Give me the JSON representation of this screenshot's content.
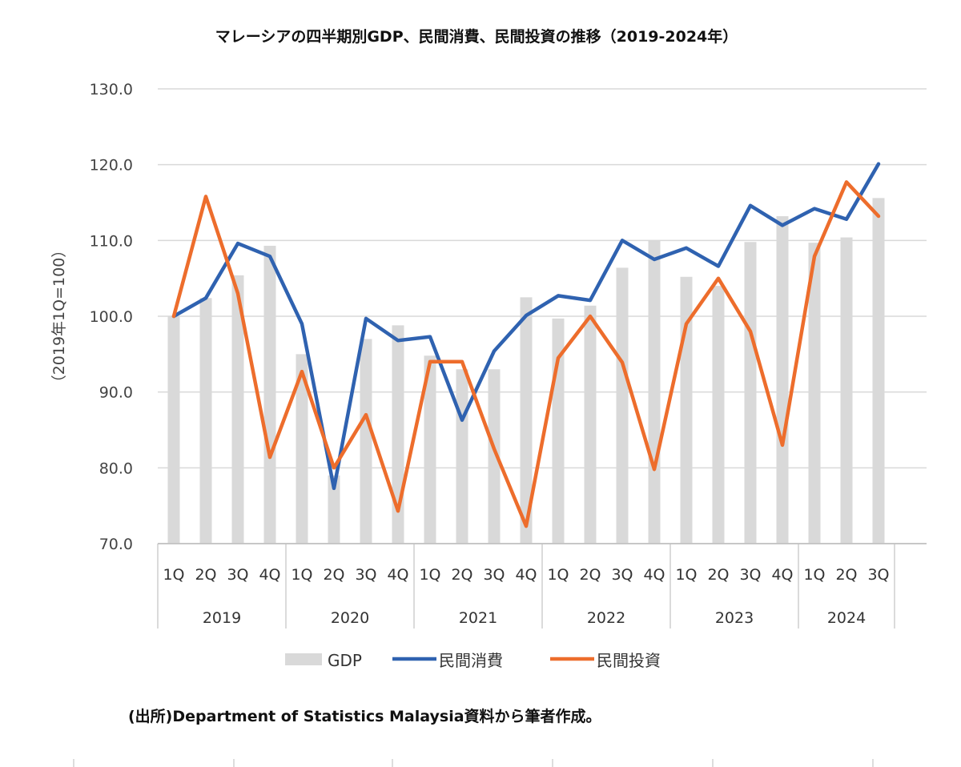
{
  "source_note": "(出所)Department of Statistics Malaysia資料から筆者作成。",
  "chart_data": {
    "type": "bar+line",
    "title": "マレーシアの四半期別GDP、民間消費、民間投資の推移（2019-2024年）",
    "ylabel": "（2019年1Q=100）",
    "xlabel": "",
    "ylim": [
      70,
      130
    ],
    "yticks": [
      "70.0",
      "80.0",
      "90.0",
      "100.0",
      "110.0",
      "120.0",
      "130.0"
    ],
    "grid": true,
    "legend_position": "bottom",
    "quarters": [
      "1Q",
      "2Q",
      "3Q",
      "4Q",
      "1Q",
      "2Q",
      "3Q",
      "4Q",
      "1Q",
      "2Q",
      "3Q",
      "4Q",
      "1Q",
      "2Q",
      "3Q",
      "4Q",
      "1Q",
      "2Q",
      "3Q",
      "4Q",
      "1Q",
      "2Q",
      "3Q"
    ],
    "years": [
      {
        "label": "2019",
        "count": 4
      },
      {
        "label": "2020",
        "count": 4
      },
      {
        "label": "2021",
        "count": 4
      },
      {
        "label": "2022",
        "count": 4
      },
      {
        "label": "2023",
        "count": 4
      },
      {
        "label": "2024",
        "count": 3
      }
    ],
    "series": [
      {
        "name": "GDP",
        "kind": "bar",
        "color": "#d9d9d9",
        "values": [
          100.0,
          102.4,
          105.4,
          109.3,
          95.0,
          79.0,
          97.0,
          98.8,
          94.8,
          93.0,
          93.0,
          102.5,
          99.7,
          101.4,
          106.4,
          110.0,
          105.2,
          104.0,
          109.8,
          113.2,
          109.7,
          110.4,
          115.6
        ]
      },
      {
        "name": "民間消費",
        "kind": "line",
        "color": "#2f62b0",
        "values": [
          100.0,
          102.4,
          109.6,
          107.9,
          99.0,
          77.3,
          99.7,
          96.8,
          97.3,
          86.3,
          95.4,
          100.1,
          102.7,
          102.1,
          110.0,
          107.5,
          109.0,
          106.6,
          114.6,
          112.0,
          114.2,
          112.8,
          120.1
        ]
      },
      {
        "name": "民間投資",
        "kind": "line",
        "color": "#ed6d2c",
        "values": [
          100.0,
          115.8,
          103.0,
          81.4,
          92.7,
          80.0,
          87.0,
          74.3,
          94.0,
          94.0,
          82.5,
          72.3,
          94.5,
          100.0,
          93.9,
          79.8,
          99.0,
          105.0,
          98.0,
          83.0,
          107.9,
          117.7,
          113.2
        ]
      }
    ]
  }
}
